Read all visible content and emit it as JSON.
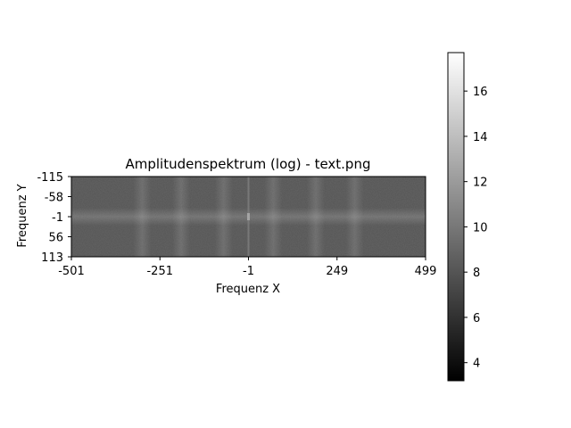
{
  "chart_data": {
    "type": "heatmap",
    "title": "Amplitudenspektrum (log) - text.png",
    "xlabel": "Frequenz X",
    "ylabel": "Frequenz Y",
    "x_ticks": [
      "-501",
      "-251",
      "-1",
      "249",
      "499"
    ],
    "y_ticks": [
      "-115",
      "-58",
      "-1",
      "56",
      "113"
    ],
    "xlim": [
      -501,
      499
    ],
    "ylim": [
      -115,
      113
    ],
    "colormap": "gray",
    "colorbar": {
      "range": [
        3.2,
        17.7
      ],
      "ticks": [
        "4",
        "6",
        "8",
        "10",
        "12",
        "14",
        "16"
      ]
    },
    "background_level": 8.0,
    "center_line_level": 10.5,
    "center_point_level": 12.5
  }
}
